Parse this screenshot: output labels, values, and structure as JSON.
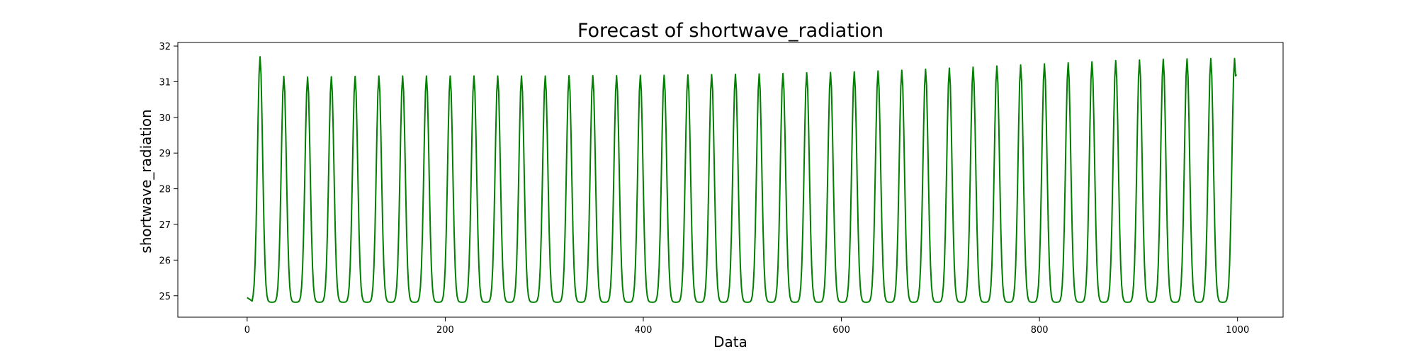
{
  "chart_data": {
    "type": "line",
    "title": "Forecast of shortwave_radiation",
    "xlabel": "Data",
    "ylabel": "shortwave_radiation",
    "xlim": [
      -70,
      1046
    ],
    "ylim": [
      24.4,
      32.1
    ],
    "xticks": [
      0,
      200,
      400,
      600,
      800,
      1000
    ],
    "yticks": [
      25,
      26,
      27,
      28,
      29,
      30,
      31,
      32
    ],
    "grid": false,
    "line_color": "#008000",
    "series": [
      {
        "x_start": 0,
        "x_end": 999,
        "baseline": 24.82,
        "first_point": 24.95,
        "first_peak_x": 13,
        "period": 24,
        "peak_width": 6,
        "peaks": [
          31.7,
          31.15,
          31.13,
          31.14,
          31.15,
          31.16,
          31.16,
          31.16,
          31.16,
          31.16,
          31.16,
          31.16,
          31.16,
          31.17,
          31.17,
          31.17,
          31.18,
          31.18,
          31.19,
          31.2,
          31.21,
          31.22,
          31.23,
          31.25,
          31.26,
          31.28,
          31.3,
          31.32,
          31.35,
          31.38,
          31.41,
          31.44,
          31.47,
          31.5,
          31.53,
          31.56,
          31.59,
          31.61,
          31.63,
          31.64,
          31.65,
          31.65,
          31.65,
          31.66
        ],
        "last_value": 31.2
      }
    ]
  }
}
